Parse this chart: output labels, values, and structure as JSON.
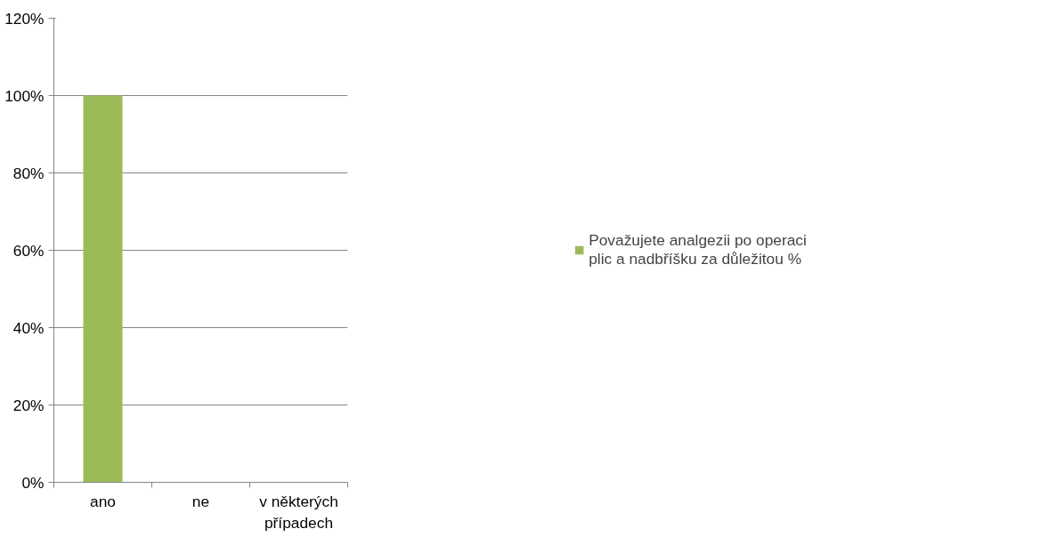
{
  "chart_data": {
    "type": "bar",
    "categories": [
      "ano",
      "ne",
      "v některých případech"
    ],
    "series": [
      {
        "name": "Považujete analgezii po operaci plic a nadbříšku za důležitou %",
        "color": "#9bbb59",
        "values": [
          100,
          0,
          0
        ]
      }
    ],
    "ylim": [
      0,
      120
    ],
    "yticks": [
      {
        "value": 0,
        "label": "0%"
      },
      {
        "value": 20,
        "label": "20%"
      },
      {
        "value": 40,
        "label": "40%"
      },
      {
        "value": 60,
        "label": "60%"
      },
      {
        "value": 80,
        "label": "80%"
      },
      {
        "value": 100,
        "label": "100%"
      },
      {
        "value": 120,
        "label": "120%"
      }
    ],
    "grid": "y",
    "legend": "right"
  }
}
